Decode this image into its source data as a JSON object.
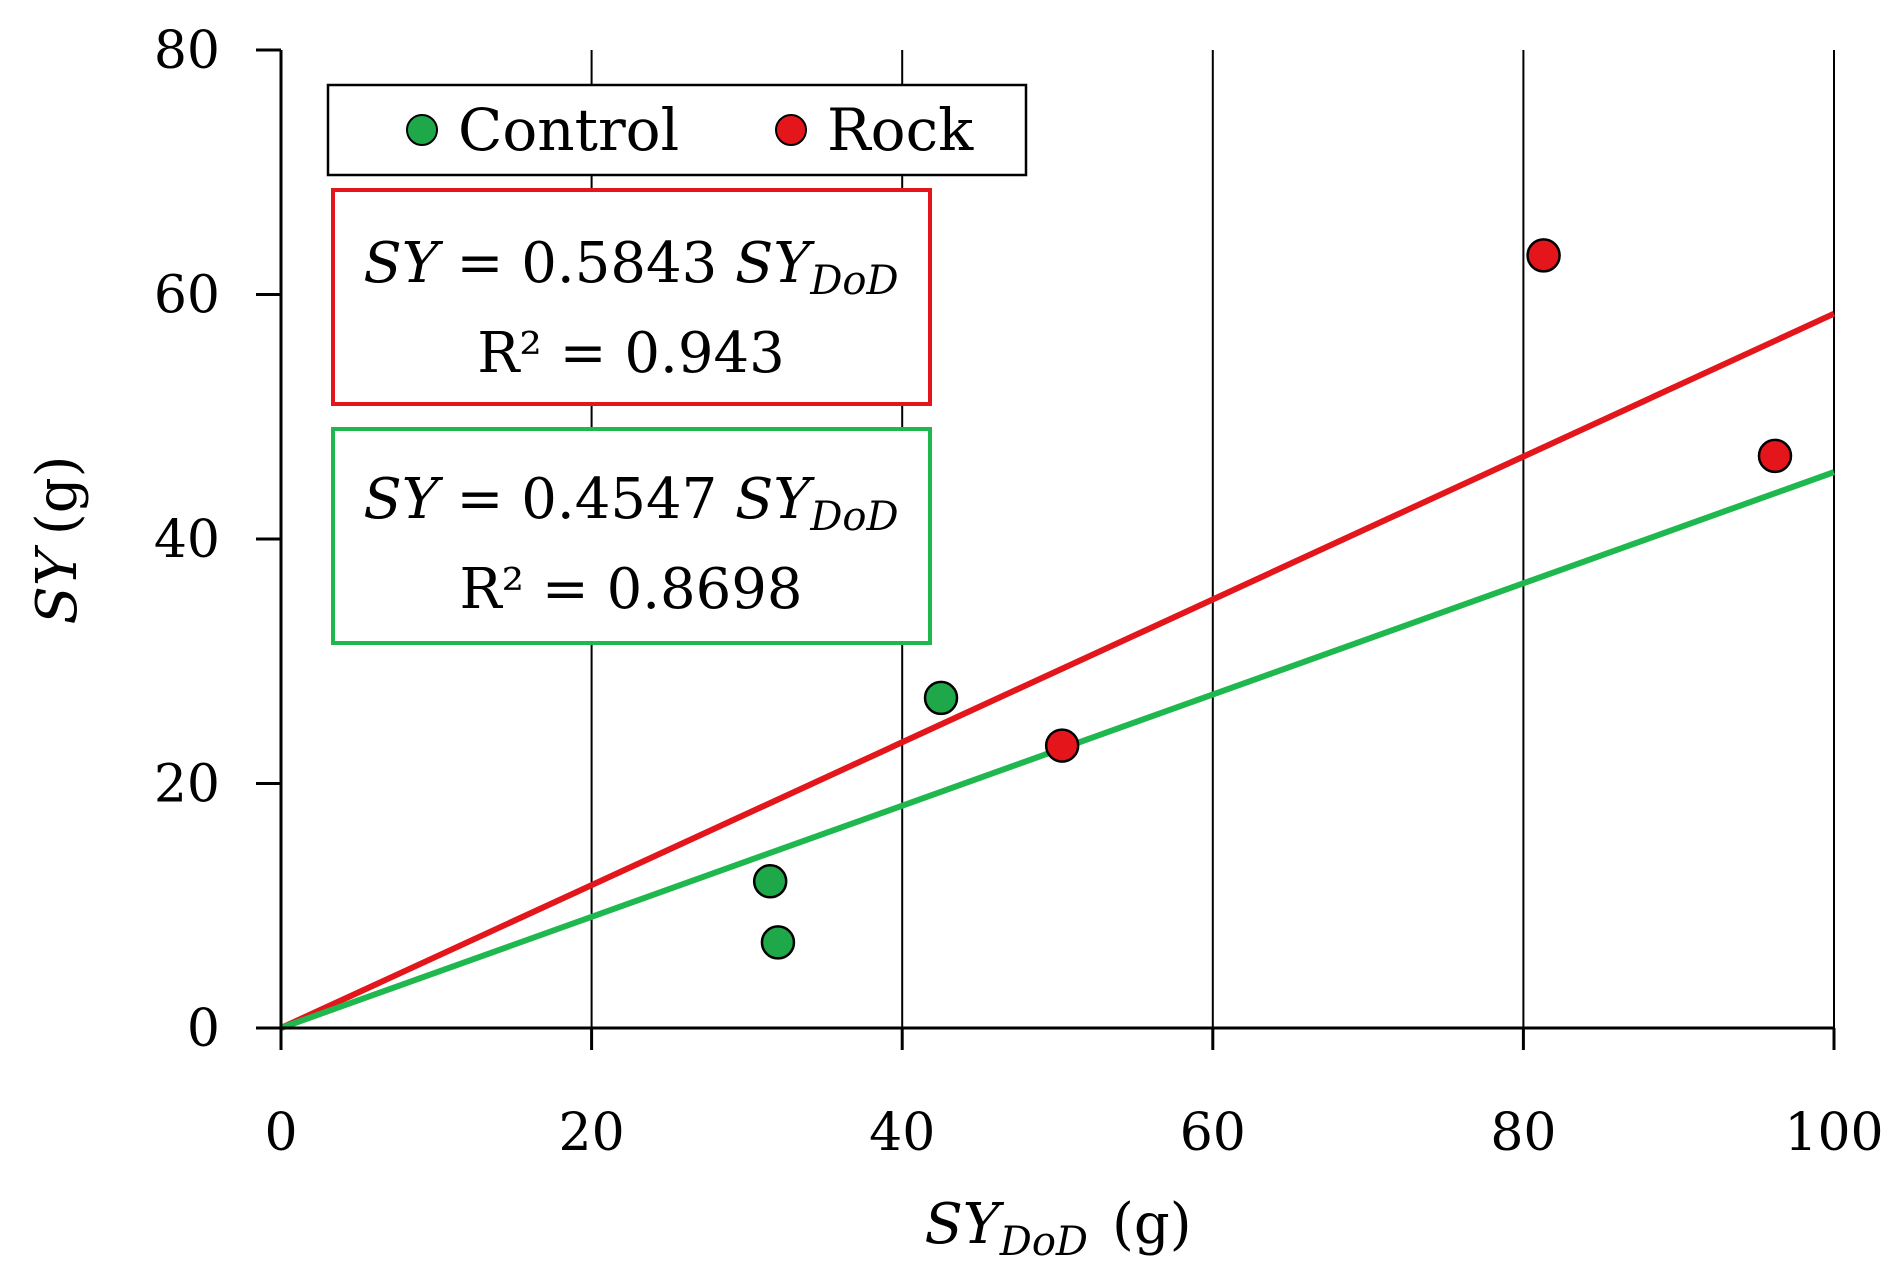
{
  "chart_data": {
    "type": "scatter",
    "xlabel": "SY",
    "xlabel_sub": "DoD",
    "xlabel_unit": "(g)",
    "ylabel": "SY",
    "ylabel_unit": "(g)",
    "xlim": [
      0,
      100
    ],
    "ylim": [
      0,
      80
    ],
    "x_ticks": [
      0,
      20,
      40,
      60,
      80,
      100
    ],
    "y_ticks": [
      0,
      20,
      40,
      60,
      80
    ],
    "grid": "vertical",
    "legend_position": "top-left",
    "series": [
      {
        "name": "Control",
        "color": "#1ea84a",
        "points": [
          [
            31.5,
            12
          ],
          [
            32,
            7
          ],
          [
            42.5,
            27
          ]
        ],
        "fit": {
          "slope": 0.4547,
          "r2": "0.8698",
          "line_color": "#1fb84f"
        }
      },
      {
        "name": "Rock",
        "color": "#e4161b",
        "points": [
          [
            50.3,
            23.1
          ],
          [
            81.3,
            63.2
          ],
          [
            96.2,
            46.8
          ]
        ],
        "fit": {
          "slope": 0.5843,
          "r2": "0.943",
          "line_color": "#e3161c"
        }
      }
    ],
    "equations": [
      {
        "var": "SY",
        "eq": " = 0.5843 ",
        "var2": "SY",
        "sub": "DoD",
        "r2_text": "R² = 0.943",
        "border_color": "#e3161c"
      },
      {
        "var": "SY",
        "eq": " = 0.4547 ",
        "var2": "SY",
        "sub": "DoD",
        "r2_text": "R² = 0.8698",
        "border_color": "#1fb84f"
      }
    ]
  }
}
